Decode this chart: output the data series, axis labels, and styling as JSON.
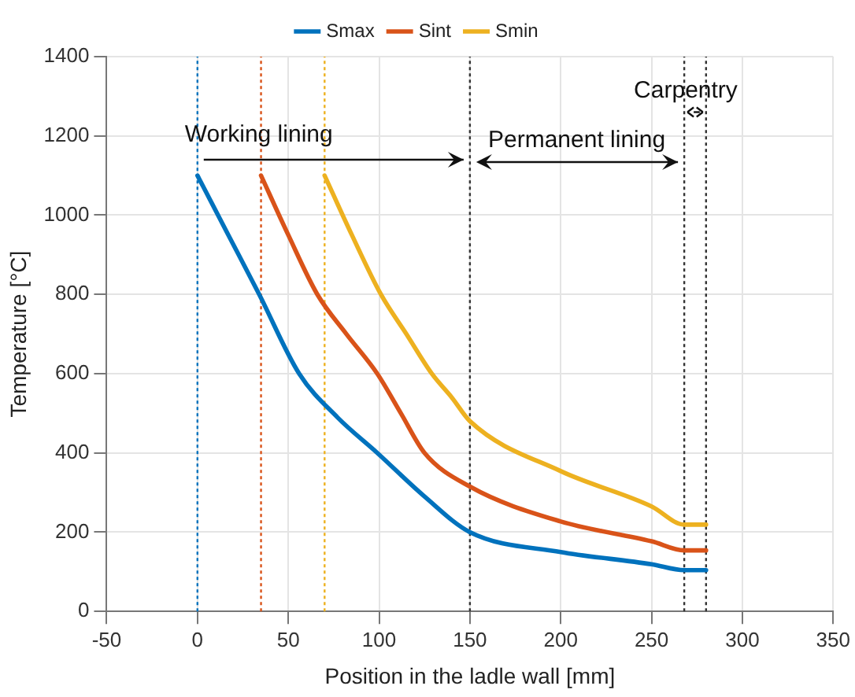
{
  "chart_data": {
    "type": "line",
    "xlabel": "Position in the ladle wall [mm]",
    "ylabel": "Temperature [°C]",
    "xlim": [
      -50,
      350
    ],
    "xticks": [
      -50,
      0,
      50,
      100,
      150,
      200,
      250,
      300,
      350
    ],
    "ylim": [
      0,
      1400
    ],
    "yticks": [
      0,
      200,
      400,
      600,
      800,
      1000,
      1200,
      1400
    ],
    "grid": true,
    "legend": "top",
    "line_style": "solid",
    "marker": "none",
    "series": [
      {
        "name": "Smax",
        "color": "#0072bd",
        "x": [
          0,
          17,
          34,
          56,
          77,
          99,
          125,
          150,
          200,
          250,
          268,
          280
        ],
        "values": [
          1100,
          950,
          800,
          600,
          490,
          400,
          290,
          200,
          150,
          119,
          104,
          104
        ]
      },
      {
        "name": "Sint",
        "color": "#d95319",
        "x": [
          35,
          50,
          66,
          82,
          99,
          112,
          125,
          150,
          200,
          250,
          268,
          280
        ],
        "values": [
          1100,
          950,
          800,
          700,
          600,
          500,
          400,
          315,
          227,
          177,
          154,
          154
        ]
      },
      {
        "name": "Smin",
        "color": "#edb120",
        "x": [
          70,
          85,
          101,
          115,
          129,
          140,
          150,
          200,
          250,
          268,
          280
        ],
        "values": [
          1100,
          950,
          800,
          700,
          600,
          540,
          480,
          354,
          265,
          219,
          219
        ]
      }
    ],
    "ref_lines": [
      {
        "axis": "x",
        "value": 0,
        "color": "#0072bd",
        "line_style": "dotted"
      },
      {
        "axis": "x",
        "value": 35,
        "color": "#d95319",
        "line_style": "dotted"
      },
      {
        "axis": "x",
        "value": 70,
        "color": "#edb120",
        "line_style": "dotted"
      },
      {
        "axis": "x",
        "value": 150,
        "color": "#333333",
        "line_style": "dotted"
      },
      {
        "axis": "x",
        "value": 268,
        "color": "#333333",
        "line_style": "dotted"
      },
      {
        "axis": "x",
        "value": 280,
        "color": "#333333",
        "line_style": "dotted"
      }
    ],
    "annotations": [
      {
        "text": "Working lining",
        "x": 150,
        "y": 1140
      },
      "Permanent lining",
      "Carpentry"
    ]
  }
}
